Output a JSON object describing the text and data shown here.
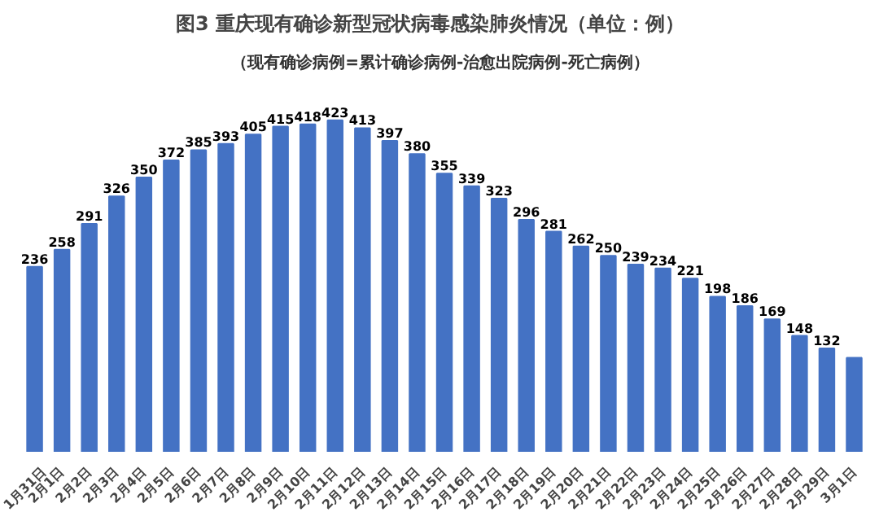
{
  "chart_data": {
    "type": "bar",
    "title": "图3    重庆现有确诊新型冠状病毒感染肺炎情况（单位：例）",
    "subtitle": "（现有确诊病例=累计确诊病例-治愈出院病例-死亡病例）",
    "categories": [
      "1月31日",
      "2月1日",
      "2月2日",
      "2月3日",
      "2月4日",
      "2月5日",
      "2月6日",
      "2月7日",
      "2月8日",
      "2月9日",
      "2月10日",
      "2月11日",
      "2月12日",
      "2月13日",
      "2月14日",
      "2月15日",
      "2月16日",
      "2月17日",
      "2月18日",
      "2月19日",
      "2月20日",
      "2月21日",
      "2月22日",
      "2月23日",
      "2月24日",
      "2月25日",
      "2月26日",
      "2月27日",
      "2月28日",
      "2月29日",
      "3月1日"
    ],
    "values": [
      236,
      258,
      291,
      326,
      350,
      372,
      385,
      393,
      405,
      415,
      418,
      423,
      413,
      397,
      380,
      355,
      339,
      323,
      296,
      281,
      262,
      250,
      239,
      234,
      221,
      198,
      186,
      169,
      148,
      132,
      120
    ],
    "value_labels": [
      "236",
      "258",
      "291",
      "326",
      "350",
      "372",
      "385",
      "393",
      "405",
      "415",
      "418",
      "423",
      "413",
      "397",
      "380",
      "355",
      "339",
      "323",
      "296",
      "281",
      "262",
      "250",
      "239",
      "234",
      "221",
      "198",
      "186",
      "169",
      "148",
      "132",
      null
    ],
    "color": "#4472c4",
    "grid": false
  }
}
